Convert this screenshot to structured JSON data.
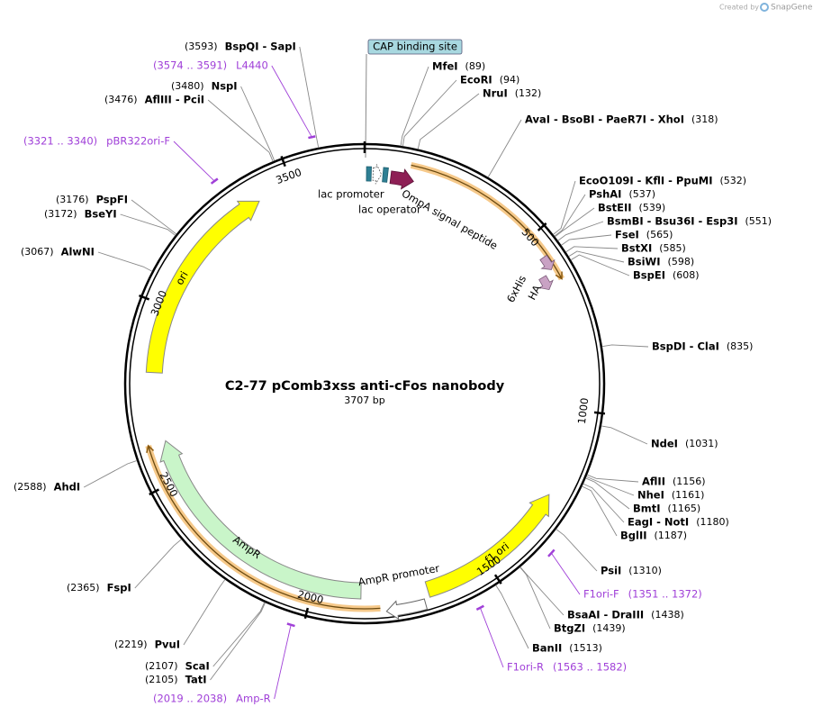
{
  "header": {
    "created_by": "Created by",
    "brand": "SnapGene"
  },
  "map": {
    "title": "C2-77 pComb3xss anti-cFos nanobody",
    "length": {
      "value": 3707,
      "label": "3707 bp"
    },
    "ticks": [
      500,
      1000,
      1500,
      2000,
      2500,
      3000,
      3500
    ],
    "sites": [
      {
        "name": "MfeI",
        "position": {
          "value": 89,
          "label": "(89)"
        }
      },
      {
        "name": "EcoRI",
        "position": {
          "value": 94,
          "label": "(94)"
        }
      },
      {
        "name": "NruI",
        "position": {
          "value": 132,
          "label": "(132)"
        }
      },
      {
        "name": "AvaI - BsoBI - PaeR7I - XhoI",
        "position": {
          "value": 318,
          "label": "(318)"
        }
      },
      {
        "name": "EcoO109I - KflI - PpuMI",
        "position": {
          "value": 532,
          "label": "(532)"
        }
      },
      {
        "name": "PshAI",
        "position": {
          "value": 537,
          "label": "(537)"
        }
      },
      {
        "name": "BstEII",
        "position": {
          "value": 539,
          "label": "(539)"
        }
      },
      {
        "name": "BsmBI - Bsu36I - Esp3I",
        "position": {
          "value": 551,
          "label": "(551)"
        }
      },
      {
        "name": "FseI",
        "position": {
          "value": 565,
          "label": "(565)"
        }
      },
      {
        "name": "BstXI",
        "position": {
          "value": 585,
          "label": "(585)"
        }
      },
      {
        "name": "BsiWI",
        "position": {
          "value": 598,
          "label": "(598)"
        }
      },
      {
        "name": "BspEI",
        "position": {
          "value": 608,
          "label": "(608)"
        }
      },
      {
        "name": "BspDI - ClaI",
        "position": {
          "value": 835,
          "label": "(835)"
        }
      },
      {
        "name": "NdeI",
        "position": {
          "value": 1031,
          "label": "(1031)"
        }
      },
      {
        "name": "AflII",
        "position": {
          "value": 1156,
          "label": "(1156)"
        }
      },
      {
        "name": "NheI",
        "position": {
          "value": 1161,
          "label": "(1161)"
        }
      },
      {
        "name": "BmtI",
        "position": {
          "value": 1165,
          "label": "(1165)"
        }
      },
      {
        "name": "EagI - NotI",
        "position": {
          "value": 1180,
          "label": "(1180)"
        }
      },
      {
        "name": "BglII",
        "position": {
          "value": 1187,
          "label": "(1187)"
        }
      },
      {
        "name": "PsiI",
        "position": {
          "value": 1310,
          "label": "(1310)"
        }
      },
      {
        "name": "BsaAI - DraIII",
        "position": {
          "value": 1438,
          "label": "(1438)"
        }
      },
      {
        "name": "BtgZI",
        "position": {
          "value": 1439,
          "label": "(1439)"
        }
      },
      {
        "name": "BanII",
        "position": {
          "value": 1513,
          "label": "(1513)"
        }
      },
      {
        "name": "BspQI - SapI",
        "position": {
          "value": 3593,
          "label": "(3593)"
        }
      },
      {
        "name": "NspI",
        "position": {
          "value": 3480,
          "label": "(3480)"
        }
      },
      {
        "name": "AflIII - PciI",
        "position": {
          "value": 3476,
          "label": "(3476)"
        }
      },
      {
        "name": "PspFI",
        "position": {
          "value": 3176,
          "label": "(3176)"
        }
      },
      {
        "name": "BseYI",
        "position": {
          "value": 3172,
          "label": "(3172)"
        }
      },
      {
        "name": "AlwNI",
        "position": {
          "value": 3067,
          "label": "(3067)"
        }
      },
      {
        "name": "AhdI",
        "position": {
          "value": 2588,
          "label": "(2588)"
        }
      },
      {
        "name": "FspI",
        "position": {
          "value": 2365,
          "label": "(2365)"
        }
      },
      {
        "name": "PvuI",
        "position": {
          "value": 2219,
          "label": "(2219)"
        }
      },
      {
        "name": "ScaI",
        "position": {
          "value": 2107,
          "label": "(2107)"
        }
      },
      {
        "name": "TatI",
        "position": {
          "value": 2105,
          "label": "(2105)"
        }
      }
    ],
    "primers": [
      {
        "name": "L4440",
        "range": {
          "value": [
            3574,
            3591
          ],
          "label": "(3574 .. 3591)"
        }
      },
      {
        "name": "pBR322ori-F",
        "range": {
          "value": [
            3321,
            3340
          ],
          "label": "(3321 .. 3340)"
        }
      },
      {
        "name": "F1ori-F",
        "range": {
          "value": [
            1351,
            1372
          ],
          "label": "(1351 .. 1372)"
        }
      },
      {
        "name": "F1ori-R",
        "range": {
          "value": [
            1563,
            1582
          ],
          "label": "(1563 .. 1582)"
        }
      },
      {
        "name": "Amp-R",
        "range": {
          "value": [
            2019,
            2038
          ],
          "label": "(2019 .. 2038)"
        }
      }
    ],
    "features": [
      "CAP binding site",
      "lac promoter",
      "lac operator",
      "OmpA signal peptide",
      "6xHis",
      "HA",
      "ori",
      "f1 ori",
      "AmpR",
      "AmpR promoter"
    ]
  }
}
